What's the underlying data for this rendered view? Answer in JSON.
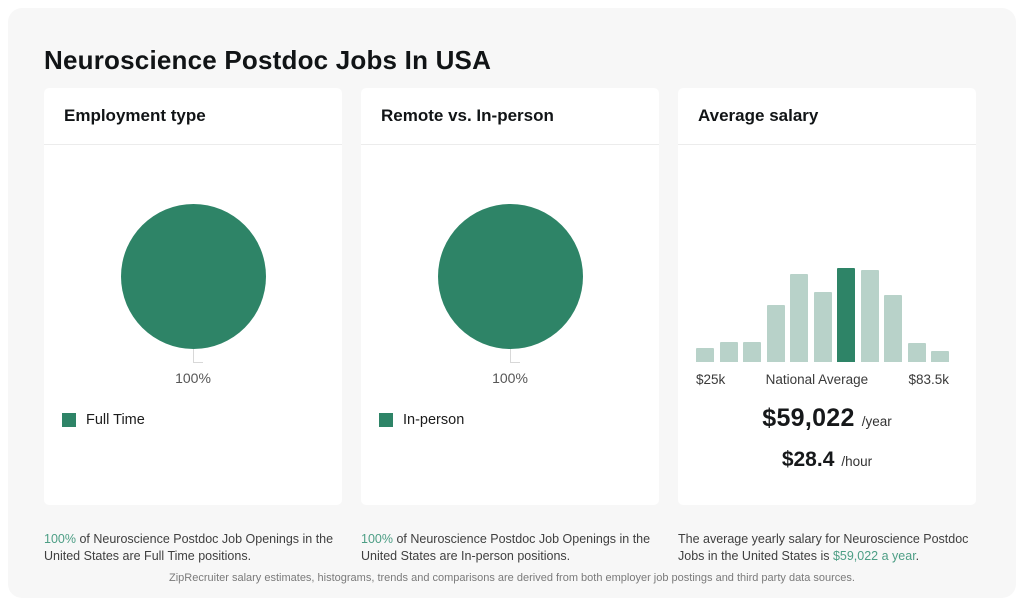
{
  "page": {
    "title": "Neuroscience Postdoc Jobs In USA",
    "footer": "ZipRecruiter salary estimates, histograms, trends and comparisons are derived from both employer job postings and third party data sources."
  },
  "colors": {
    "green_dark": "#2E8467",
    "green_light": "#B8D2C9",
    "green_text": "#4D9E85",
    "background": "#F7F7F7",
    "card_background": "#FFFFFF"
  },
  "cards": {
    "employment": {
      "title": "Employment type",
      "pie_label": "100%",
      "legend": "Full Time",
      "caption_highlight": "100%",
      "caption_rest": " of Neuroscience Postdoc Job Openings in the United States are Full Time positions."
    },
    "remote": {
      "title": "Remote vs. In-person",
      "pie_label": "100%",
      "legend": "In-person",
      "caption_highlight": "100%",
      "caption_rest": " of Neuroscience Postdoc Job Openings in the United States are In-person positions."
    },
    "salary": {
      "title": "Average salary",
      "axis_left": "$25k",
      "axis_center": "National Average",
      "axis_right": "$83.5k",
      "yearly_value": "$59,022",
      "yearly_unit": "/year",
      "hourly_value": "$28.4",
      "hourly_unit": "/hour",
      "caption_prefix": "The average yearly salary for Neuroscience Postdoc Jobs in the United States is ",
      "caption_highlight": "$59,022 a year",
      "caption_suffix": "."
    }
  },
  "chart_data": [
    {
      "type": "pie",
      "title": "Employment type",
      "slices": [
        {
          "label": "Full Time",
          "value": 100
        }
      ],
      "data_label": "100%",
      "legend_position": "bottom-left",
      "slice_color": "#2E8467"
    },
    {
      "type": "pie",
      "title": "Remote vs. In-person",
      "slices": [
        {
          "label": "In-person",
          "value": 100
        }
      ],
      "data_label": "100%",
      "legend_position": "bottom-left",
      "slice_color": "#2E8467"
    },
    {
      "type": "bar",
      "title": "Average salary",
      "subtype": "salary-histogram",
      "values": [
        15,
        21,
        21,
        61,
        94,
        74,
        100,
        98,
        71,
        20,
        12
      ],
      "values_note": "relative bar heights in percent of tallest bar; absolute counts not shown in image",
      "highlight_index": 6,
      "x_range_labels": [
        "$25k",
        "$83.5k"
      ],
      "center_label": "National Average",
      "national_average_year": 59022,
      "national_average_hour": 28.4,
      "bar_color": "#B8D2C9",
      "highlight_color": "#2E8467",
      "grid": false,
      "legend": false
    }
  ]
}
